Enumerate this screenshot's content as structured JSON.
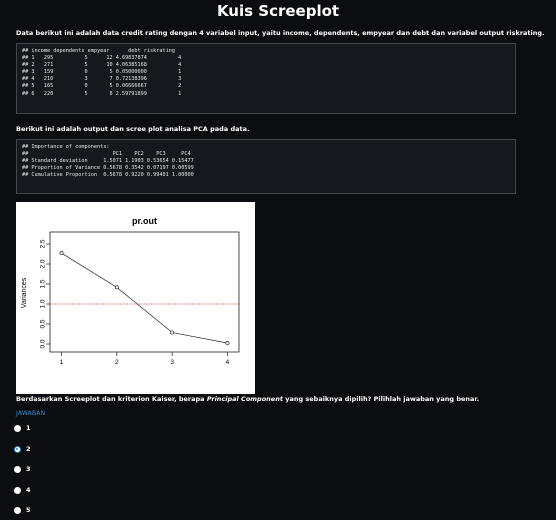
{
  "page": {
    "title": "Kuis Screeplot",
    "intro": "Data berikut ini adalah data credit rating dengan 4 variabel input, yaitu income, dependents, empyear dan debt dan variabel output riskrating.",
    "output_intro": "Berikut ini adalah output dan scree plot analisa PCA pada data.",
    "question_before": "Berdasarkan Screeplot dan kriterion Kaiser, berapa ",
    "question_italic": "Principal Component",
    "question_after": " yang sebaiknya dipilih? Pilihlah jawaban yang benar.",
    "answer_label": "JAWABAN"
  },
  "data_block": {
    "lines": [
      "## income dependents empyear      debt riskrating",
      "## 1   295          5      12 4.69837874          4",
      "## 2   271          5      10 4.06385168          4",
      "## 3   159          0       5 0.05000000          1",
      "## 4   210          3       7 0.72138396          3",
      "## 5   165          0       5 0.06666667          2",
      "## 6   220          5       8 2.59791899          1"
    ]
  },
  "pca_block": {
    "lines": [
      "## Importance of components:",
      "##                           PC1    PC2    PC3     PC4",
      "## Standard deviation     1.5071 1.1903 0.53654 0.15477",
      "## Proportion of Variance 0.5678 0.3542 0.07197 0.00599",
      "## Cumulative Proportion  0.5678 0.9220 0.99401 1.00000"
    ]
  },
  "chart_data": {
    "type": "line",
    "title": "pr.out",
    "ylabel": "Variances",
    "xlabel": "",
    "x": [
      1,
      2,
      3,
      4
    ],
    "values": [
      2.2714,
      1.4168,
      0.2879,
      0.024
    ],
    "ylim": [
      0,
      2.5
    ],
    "yticks": [
      "0.0",
      "0.5",
      "1.0",
      "1.5",
      "2.0",
      "2.5"
    ],
    "xticks": [
      "1",
      "2",
      "3",
      "4"
    ],
    "reference_line": 1.0,
    "line_color": "#000000",
    "reference_color": "#d62728"
  },
  "options": [
    {
      "label": "1",
      "selected": false
    },
    {
      "label": "2",
      "selected": true
    },
    {
      "label": "3",
      "selected": false
    },
    {
      "label": "4",
      "selected": false
    },
    {
      "label": "5",
      "selected": false
    }
  ]
}
